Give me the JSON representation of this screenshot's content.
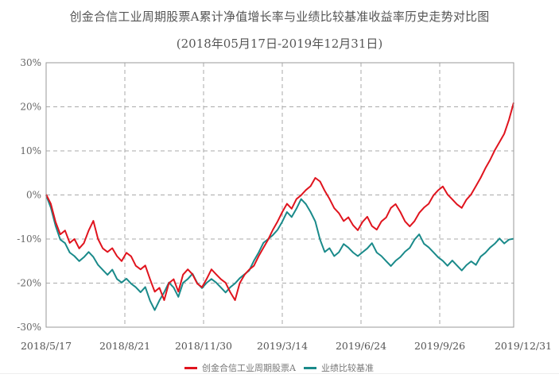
{
  "header": {
    "title": "创金合信工业周期股票A累计净值增长率与业绩比较基准收益率历史走势对比图",
    "subtitle": "(2018年05月17日-2019年12月31日)"
  },
  "legend": {
    "items": [
      {
        "label": "创金合信工业周期股票A",
        "color": "#e0141e"
      },
      {
        "label": "业绩比较基准",
        "color": "#1a8a8a"
      }
    ]
  },
  "chart_data": {
    "type": "line",
    "title": "创金合信工业周期股票A累计净值增长率与业绩比较基准收益率历史走势对比图",
    "subtitle": "(2018年05月17日-2019年12月31日)",
    "xlabel": "",
    "ylabel": "",
    "ylim": [
      -30,
      30
    ],
    "yticks": [
      "30%",
      "20%",
      "10%",
      "0%",
      "-10%",
      "-20%",
      "-30%"
    ],
    "xticks": [
      "2018/5/17",
      "2018/8/21",
      "2018/11/30",
      "2019/3/14",
      "2019/6/24",
      "2019/9/26",
      "2019/12/31"
    ],
    "grid": true,
    "legend_position": "bottom",
    "series": [
      {
        "name": "创金合信工业周期股票A",
        "color": "#e0141e",
        "values": [
          0,
          -2,
          -6,
          -9,
          -8,
          -11,
          -10,
          -12,
          -11,
          -8,
          -6,
          -10,
          -12,
          -13,
          -12,
          -14,
          -15,
          -13,
          -14,
          -16,
          -17,
          -16,
          -19,
          -22,
          -21,
          -24,
          -20,
          -19,
          -22,
          -18,
          -17,
          -18,
          -20,
          -21,
          -19,
          -17,
          -18,
          -19,
          -20,
          -22,
          -24,
          -20,
          -18,
          -17,
          -16,
          -14,
          -12,
          -10,
          -8,
          -6,
          -4,
          -2,
          -3,
          -1,
          0,
          1,
          2,
          4,
          3,
          1,
          -1,
          -3,
          -4,
          -6,
          -5,
          -7,
          -8,
          -6,
          -5,
          -7,
          -8,
          -6,
          -5,
          -3,
          -2,
          -4,
          -6,
          -7,
          -6,
          -4,
          -3,
          -2,
          0,
          1,
          2,
          0,
          -1,
          -2,
          -3,
          -1,
          0,
          2,
          4,
          6,
          8,
          10,
          12,
          14,
          17,
          21
        ]
      },
      {
        "name": "业绩比较基准",
        "color": "#1a8a8a",
        "values": [
          0,
          -3,
          -7,
          -10,
          -11,
          -13,
          -14,
          -15,
          -14,
          -13,
          -14,
          -16,
          -17,
          -18,
          -17,
          -19,
          -20,
          -19,
          -20,
          -21,
          -22,
          -21,
          -24,
          -26,
          -24,
          -22,
          -20,
          -21,
          -23,
          -20,
          -19,
          -18,
          -20,
          -21,
          -20,
          -19,
          -20,
          -21,
          -22,
          -21,
          -20,
          -19,
          -18,
          -17,
          -15,
          -13,
          -11,
          -10,
          -9,
          -8,
          -6,
          -4,
          -5,
          -3,
          -1,
          -2,
          -4,
          -6,
          -10,
          -13,
          -12,
          -14,
          -13,
          -11,
          -12,
          -13,
          -14,
          -13,
          -12,
          -11,
          -13,
          -14,
          -15,
          -16,
          -15,
          -14,
          -13,
          -12,
          -10,
          -9,
          -11,
          -12,
          -13,
          -14,
          -15,
          -16,
          -15,
          -16,
          -17,
          -16,
          -15,
          -16,
          -14,
          -13,
          -12,
          -11,
          -10,
          -11,
          -10,
          -10
        ]
      }
    ]
  }
}
